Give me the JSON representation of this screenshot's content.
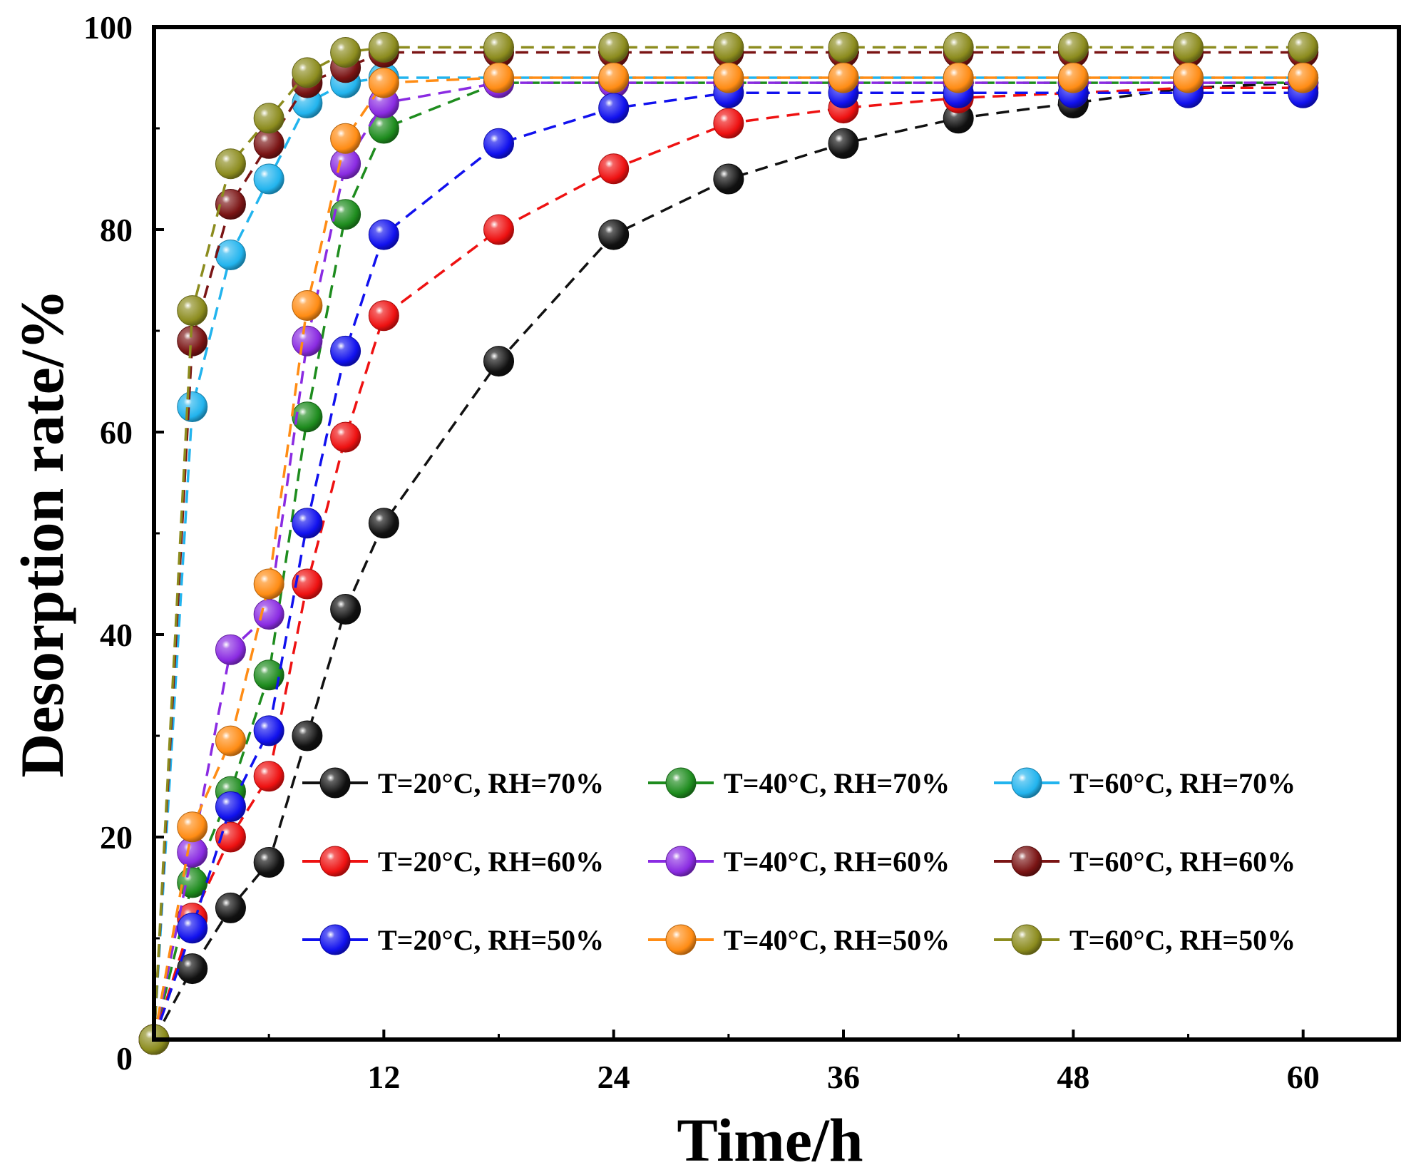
{
  "chart_data": {
    "type": "scatter",
    "title": "",
    "xlabel": "Time/h",
    "ylabel": "Desorption rate/%",
    "xlim": [
      0,
      65
    ],
    "ylim": [
      0,
      100
    ],
    "xticks": [
      12,
      24,
      36,
      48,
      60
    ],
    "xtick_labels": [
      "12",
      "24",
      "36",
      "48",
      "60"
    ],
    "yticks": [
      0,
      20,
      40,
      60,
      80,
      100
    ],
    "ytick_labels": [
      "0",
      "20",
      "40",
      "60",
      "80",
      "100"
    ],
    "grid": false,
    "legend_position": "lower-right",
    "series": [
      {
        "name": "T=20°C, RH=70%",
        "color": "#111111",
        "x": [
          0,
          2,
          4,
          6,
          8,
          10,
          12,
          18,
          24,
          30,
          36,
          42,
          48,
          54,
          60
        ],
        "y": [
          0,
          7,
          13,
          17.5,
          30,
          42.5,
          51,
          67,
          79.5,
          85,
          88.5,
          91,
          92.5,
          94,
          94.5
        ]
      },
      {
        "name": "T=40°C, RH=70%",
        "color": "#1e8c1e",
        "x": [
          0,
          2,
          4,
          6,
          8,
          10,
          12,
          18,
          24,
          30,
          36,
          42,
          48,
          54,
          60
        ],
        "y": [
          0,
          15.5,
          24.5,
          36,
          61.5,
          81.5,
          90,
          94.5,
          94.5,
          94.5,
          94.5,
          94.5,
          94.5,
          94.5,
          94.5
        ]
      },
      {
        "name": "T=60°C, RH=70%",
        "color": "#22b4ee",
        "x": [
          0,
          2,
          4,
          6,
          8,
          10,
          12,
          18,
          24,
          30,
          36,
          42,
          48,
          54,
          60
        ],
        "y": [
          0,
          62.5,
          77.5,
          85,
          92.5,
          94.5,
          95,
          95,
          95,
          95,
          95,
          95,
          95,
          95,
          95
        ]
      },
      {
        "name": "T=20°C, RH=60%",
        "color": "#ee1111",
        "x": [
          0,
          2,
          4,
          6,
          8,
          10,
          12,
          18,
          24,
          30,
          36,
          42,
          48,
          54,
          60
        ],
        "y": [
          0,
          12,
          20,
          26,
          45,
          59.5,
          71.5,
          80,
          86,
          90.5,
          92,
          93,
          93.5,
          94,
          94
        ]
      },
      {
        "name": "T=40°C, RH=60%",
        "color": "#8a2be2",
        "x": [
          0,
          2,
          4,
          6,
          8,
          10,
          12,
          18,
          24,
          30,
          36,
          42,
          48,
          54,
          60
        ],
        "y": [
          0,
          18.5,
          38.5,
          42,
          69,
          86.5,
          92.5,
          94.5,
          94.5,
          94.5,
          94.5,
          94.5,
          94.5,
          94.5,
          94.5
        ]
      },
      {
        "name": "T=60°C, RH=60%",
        "color": "#7a1414",
        "x": [
          0,
          2,
          4,
          6,
          8,
          10,
          12,
          18,
          24,
          30,
          36,
          42,
          48,
          54,
          60
        ],
        "y": [
          0,
          69,
          82.5,
          88.5,
          94.5,
          96,
          97.5,
          97.5,
          97.5,
          97.5,
          97.5,
          97.5,
          97.5,
          97.5,
          97.5
        ]
      },
      {
        "name": "T=20°C, RH=50%",
        "color": "#1111ee",
        "x": [
          0,
          2,
          4,
          6,
          8,
          10,
          12,
          18,
          24,
          30,
          36,
          42,
          48,
          54,
          60
        ],
        "y": [
          0,
          11,
          23,
          30.5,
          51,
          68,
          79.5,
          88.5,
          92,
          93.5,
          93.5,
          93.5,
          93.5,
          93.5,
          93.5
        ]
      },
      {
        "name": "T=40°C, RH=50%",
        "color": "#ff8c14",
        "x": [
          0,
          2,
          4,
          6,
          8,
          10,
          12,
          18,
          24,
          30,
          36,
          42,
          48,
          54,
          60
        ],
        "y": [
          0,
          21,
          29.5,
          45,
          72.5,
          89,
          94.5,
          95,
          95,
          95,
          95,
          95,
          95,
          95,
          95
        ]
      },
      {
        "name": "T=60°C, RH=50%",
        "color": "#8c8c1e",
        "x": [
          0,
          2,
          4,
          6,
          8,
          10,
          12,
          18,
          24,
          30,
          36,
          42,
          48,
          54,
          60
        ],
        "y": [
          0,
          72,
          86.5,
          91,
          95.5,
          97.5,
          98,
          98,
          98,
          98,
          98,
          98,
          98,
          98,
          98
        ]
      }
    ]
  }
}
